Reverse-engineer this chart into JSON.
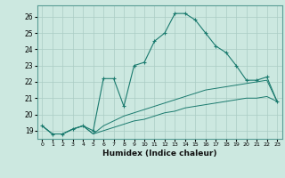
{
  "xlabel": "Humidex (Indice chaleur)",
  "background_color": "#cce8e0",
  "grid_color": "#aaccc4",
  "line_color": "#1a7a6e",
  "xlim": [
    -0.5,
    23.5
  ],
  "ylim": [
    18.5,
    26.7
  ],
  "xticks": [
    0,
    1,
    2,
    3,
    4,
    5,
    6,
    7,
    8,
    9,
    10,
    11,
    12,
    13,
    14,
    15,
    16,
    17,
    18,
    19,
    20,
    21,
    22,
    23
  ],
  "yticks": [
    19,
    20,
    21,
    22,
    23,
    24,
    25,
    26
  ],
  "series1_x": [
    0,
    1,
    2,
    3,
    4,
    5,
    6,
    7,
    8,
    9,
    10,
    11,
    12,
    13,
    14,
    15,
    16,
    17,
    18,
    19,
    20,
    21,
    22,
    23
  ],
  "series1_y": [
    19.3,
    18.8,
    18.8,
    19.1,
    19.3,
    19.0,
    22.2,
    22.2,
    20.5,
    23.0,
    23.2,
    24.5,
    25.0,
    26.2,
    26.2,
    25.8,
    25.0,
    24.2,
    23.8,
    23.0,
    22.1,
    22.1,
    22.3,
    20.8
  ],
  "series2_x": [
    0,
    1,
    2,
    3,
    4,
    5,
    6,
    7,
    8,
    9,
    10,
    11,
    12,
    13,
    14,
    15,
    16,
    17,
    18,
    19,
    20,
    21,
    22,
    23
  ],
  "series2_y": [
    19.3,
    18.8,
    18.8,
    19.1,
    19.3,
    18.8,
    19.3,
    19.6,
    19.9,
    20.1,
    20.3,
    20.5,
    20.7,
    20.9,
    21.1,
    21.3,
    21.5,
    21.6,
    21.7,
    21.8,
    21.9,
    22.0,
    22.1,
    20.8
  ],
  "series3_x": [
    0,
    1,
    2,
    3,
    4,
    5,
    6,
    7,
    8,
    9,
    10,
    11,
    12,
    13,
    14,
    15,
    16,
    17,
    18,
    19,
    20,
    21,
    22,
    23
  ],
  "series3_y": [
    19.3,
    18.8,
    18.8,
    19.1,
    19.3,
    18.8,
    19.0,
    19.2,
    19.4,
    19.6,
    19.7,
    19.9,
    20.1,
    20.2,
    20.4,
    20.5,
    20.6,
    20.7,
    20.8,
    20.9,
    21.0,
    21.0,
    21.1,
    20.8
  ]
}
